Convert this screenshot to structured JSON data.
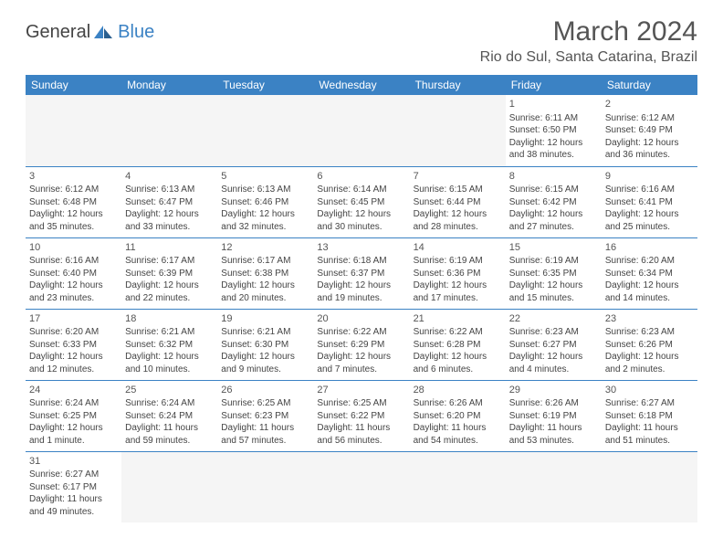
{
  "logo": {
    "text1": "General",
    "text2": "Blue"
  },
  "title": "March 2024",
  "location": "Rio do Sul, Santa Catarina, Brazil",
  "headers": [
    "Sunday",
    "Monday",
    "Tuesday",
    "Wednesday",
    "Thursday",
    "Friday",
    "Saturday"
  ],
  "colors": {
    "header_bg": "#3b82c4",
    "header_text": "#ffffff",
    "border": "#3b82c4",
    "text": "#444444"
  },
  "weeks": [
    [
      null,
      null,
      null,
      null,
      null,
      {
        "n": "1",
        "sr": "Sunrise: 6:11 AM",
        "ss": "Sunset: 6:50 PM",
        "dl": "Daylight: 12 hours and 38 minutes."
      },
      {
        "n": "2",
        "sr": "Sunrise: 6:12 AM",
        "ss": "Sunset: 6:49 PM",
        "dl": "Daylight: 12 hours and 36 minutes."
      }
    ],
    [
      {
        "n": "3",
        "sr": "Sunrise: 6:12 AM",
        "ss": "Sunset: 6:48 PM",
        "dl": "Daylight: 12 hours and 35 minutes."
      },
      {
        "n": "4",
        "sr": "Sunrise: 6:13 AM",
        "ss": "Sunset: 6:47 PM",
        "dl": "Daylight: 12 hours and 33 minutes."
      },
      {
        "n": "5",
        "sr": "Sunrise: 6:13 AM",
        "ss": "Sunset: 6:46 PM",
        "dl": "Daylight: 12 hours and 32 minutes."
      },
      {
        "n": "6",
        "sr": "Sunrise: 6:14 AM",
        "ss": "Sunset: 6:45 PM",
        "dl": "Daylight: 12 hours and 30 minutes."
      },
      {
        "n": "7",
        "sr": "Sunrise: 6:15 AM",
        "ss": "Sunset: 6:44 PM",
        "dl": "Daylight: 12 hours and 28 minutes."
      },
      {
        "n": "8",
        "sr": "Sunrise: 6:15 AM",
        "ss": "Sunset: 6:42 PM",
        "dl": "Daylight: 12 hours and 27 minutes."
      },
      {
        "n": "9",
        "sr": "Sunrise: 6:16 AM",
        "ss": "Sunset: 6:41 PM",
        "dl": "Daylight: 12 hours and 25 minutes."
      }
    ],
    [
      {
        "n": "10",
        "sr": "Sunrise: 6:16 AM",
        "ss": "Sunset: 6:40 PM",
        "dl": "Daylight: 12 hours and 23 minutes."
      },
      {
        "n": "11",
        "sr": "Sunrise: 6:17 AM",
        "ss": "Sunset: 6:39 PM",
        "dl": "Daylight: 12 hours and 22 minutes."
      },
      {
        "n": "12",
        "sr": "Sunrise: 6:17 AM",
        "ss": "Sunset: 6:38 PM",
        "dl": "Daylight: 12 hours and 20 minutes."
      },
      {
        "n": "13",
        "sr": "Sunrise: 6:18 AM",
        "ss": "Sunset: 6:37 PM",
        "dl": "Daylight: 12 hours and 19 minutes."
      },
      {
        "n": "14",
        "sr": "Sunrise: 6:19 AM",
        "ss": "Sunset: 6:36 PM",
        "dl": "Daylight: 12 hours and 17 minutes."
      },
      {
        "n": "15",
        "sr": "Sunrise: 6:19 AM",
        "ss": "Sunset: 6:35 PM",
        "dl": "Daylight: 12 hours and 15 minutes."
      },
      {
        "n": "16",
        "sr": "Sunrise: 6:20 AM",
        "ss": "Sunset: 6:34 PM",
        "dl": "Daylight: 12 hours and 14 minutes."
      }
    ],
    [
      {
        "n": "17",
        "sr": "Sunrise: 6:20 AM",
        "ss": "Sunset: 6:33 PM",
        "dl": "Daylight: 12 hours and 12 minutes."
      },
      {
        "n": "18",
        "sr": "Sunrise: 6:21 AM",
        "ss": "Sunset: 6:32 PM",
        "dl": "Daylight: 12 hours and 10 minutes."
      },
      {
        "n": "19",
        "sr": "Sunrise: 6:21 AM",
        "ss": "Sunset: 6:30 PM",
        "dl": "Daylight: 12 hours and 9 minutes."
      },
      {
        "n": "20",
        "sr": "Sunrise: 6:22 AM",
        "ss": "Sunset: 6:29 PM",
        "dl": "Daylight: 12 hours and 7 minutes."
      },
      {
        "n": "21",
        "sr": "Sunrise: 6:22 AM",
        "ss": "Sunset: 6:28 PM",
        "dl": "Daylight: 12 hours and 6 minutes."
      },
      {
        "n": "22",
        "sr": "Sunrise: 6:23 AM",
        "ss": "Sunset: 6:27 PM",
        "dl": "Daylight: 12 hours and 4 minutes."
      },
      {
        "n": "23",
        "sr": "Sunrise: 6:23 AM",
        "ss": "Sunset: 6:26 PM",
        "dl": "Daylight: 12 hours and 2 minutes."
      }
    ],
    [
      {
        "n": "24",
        "sr": "Sunrise: 6:24 AM",
        "ss": "Sunset: 6:25 PM",
        "dl": "Daylight: 12 hours and 1 minute."
      },
      {
        "n": "25",
        "sr": "Sunrise: 6:24 AM",
        "ss": "Sunset: 6:24 PM",
        "dl": "Daylight: 11 hours and 59 minutes."
      },
      {
        "n": "26",
        "sr": "Sunrise: 6:25 AM",
        "ss": "Sunset: 6:23 PM",
        "dl": "Daylight: 11 hours and 57 minutes."
      },
      {
        "n": "27",
        "sr": "Sunrise: 6:25 AM",
        "ss": "Sunset: 6:22 PM",
        "dl": "Daylight: 11 hours and 56 minutes."
      },
      {
        "n": "28",
        "sr": "Sunrise: 6:26 AM",
        "ss": "Sunset: 6:20 PM",
        "dl": "Daylight: 11 hours and 54 minutes."
      },
      {
        "n": "29",
        "sr": "Sunrise: 6:26 AM",
        "ss": "Sunset: 6:19 PM",
        "dl": "Daylight: 11 hours and 53 minutes."
      },
      {
        "n": "30",
        "sr": "Sunrise: 6:27 AM",
        "ss": "Sunset: 6:18 PM",
        "dl": "Daylight: 11 hours and 51 minutes."
      }
    ],
    [
      {
        "n": "31",
        "sr": "Sunrise: 6:27 AM",
        "ss": "Sunset: 6:17 PM",
        "dl": "Daylight: 11 hours and 49 minutes."
      },
      null,
      null,
      null,
      null,
      null,
      null
    ]
  ]
}
